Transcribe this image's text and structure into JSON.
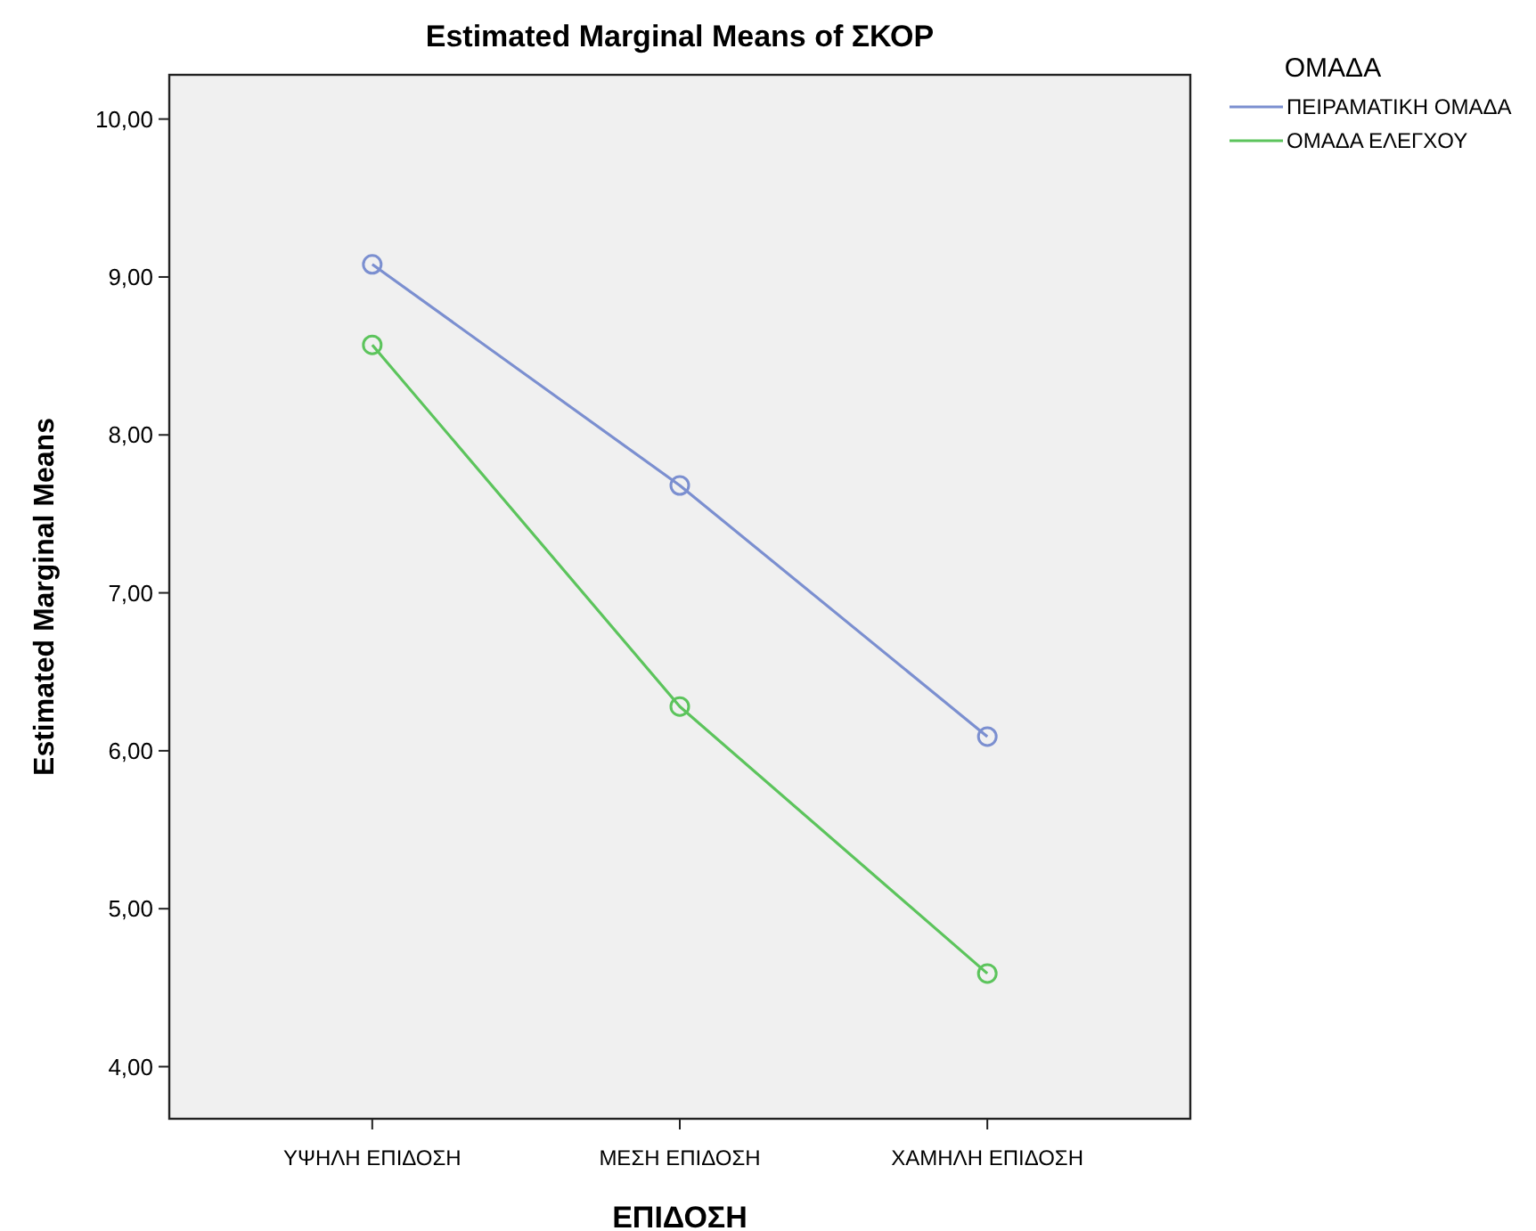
{
  "chart_data": {
    "type": "line",
    "title": "Estimated Marginal Means of ΣΚΟΡ",
    "xlabel": "ΕΠΙΔΟΣΗ",
    "ylabel": "Estimated Marginal Means",
    "legend_title": "ΟΜΑΔΑ",
    "categories": [
      "ΥΨΗΛΗ ΕΠΙΔΟΣΗ",
      "ΜΕΣΗ ΕΠΙΔΟΣΗ",
      "ΧΑΜΗΛΗ ΕΠΙΔΟΣΗ"
    ],
    "series": [
      {
        "name": "ΠΕΙΡΑΜΑΤΙΚΗ ΟΜΑΔΑ",
        "color": "#7b8fd0",
        "values": [
          9.08,
          7.68,
          6.09
        ]
      },
      {
        "name": "ΟΜΑΔΑ ΕΛΕΓΧΟΥ",
        "color": "#5cc45c",
        "values": [
          8.57,
          6.28,
          4.59
        ]
      }
    ],
    "ylim": [
      3.67,
      10.28
    ],
    "yticks": [
      {
        "value": 4,
        "label": "4,00"
      },
      {
        "value": 5,
        "label": "5,00"
      },
      {
        "value": 6,
        "label": "6,00"
      },
      {
        "value": 7,
        "label": "7,00"
      },
      {
        "value": 8,
        "label": "8,00"
      },
      {
        "value": 9,
        "label": "9,00"
      },
      {
        "value": 10,
        "label": "10,00"
      }
    ],
    "grid": false,
    "legend": "top right",
    "marker": "circle",
    "line_style": "solid"
  }
}
